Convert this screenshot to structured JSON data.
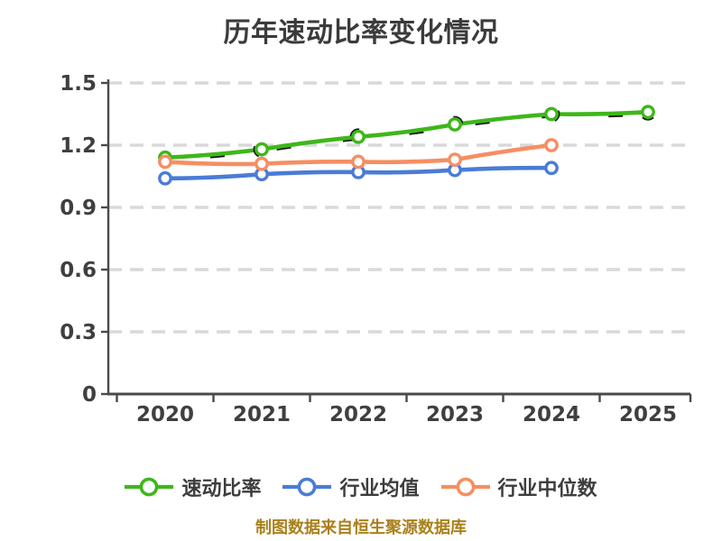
{
  "title": "历年速动比率变化情况",
  "footer": "制图数据来自恒生聚源数据库",
  "colors": {
    "grid": "#d9d9d9",
    "axis": "#4a4a4a",
    "tick_text": "#3f3f3f",
    "title_text": "#3b3b3b",
    "footer_text": "#a9811c",
    "marker_fill": "#ffffff",
    "sketch": "#161616"
  },
  "chart_data": {
    "type": "line",
    "categories": [
      "2020",
      "2021",
      "2022",
      "2023",
      "2024",
      "2025"
    ],
    "series": [
      {
        "name": "速动比率",
        "color": "#3eb71a",
        "values": [
          1.14,
          1.18,
          1.24,
          1.3,
          1.35,
          1.36
        ]
      },
      {
        "name": "行业均值",
        "color": "#4a7cd6",
        "values": [
          1.04,
          1.06,
          1.07,
          1.08,
          1.09,
          null
        ]
      },
      {
        "name": "行业中位数",
        "color": "#f68e62",
        "values": [
          1.12,
          1.11,
          1.12,
          1.13,
          1.2,
          null
        ]
      }
    ],
    "yticks": [
      0,
      0.3,
      0.6,
      0.9,
      1.2,
      1.5
    ],
    "ylim": [
      0,
      1.5
    ],
    "grid": true,
    "grid_style": "dashed",
    "legend_position": "bottom",
    "xlabel": "",
    "ylabel": ""
  },
  "legend": {
    "items": [
      {
        "label": "速动比率"
      },
      {
        "label": "行业均值"
      },
      {
        "label": "行业中位数"
      }
    ]
  }
}
